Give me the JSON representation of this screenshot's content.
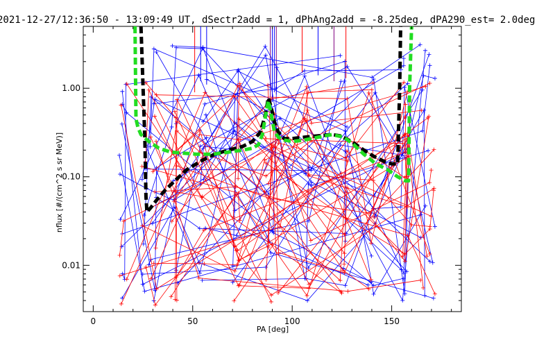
{
  "chart_data": {
    "type": "line",
    "title": "2021-12-27/12:36:50 - 13:09:49 UT, dSectr2add = 1, dPhAng2add = -8.25deg, dPA290_est=   2.0deg",
    "xlabel": "PA [deg]",
    "ylabel": "nflux [#/(cm^2 s sr MeV)]",
    "xlim": [
      -5,
      185
    ],
    "ylim": [
      0.003,
      5.0
    ],
    "yscale": "log",
    "x_ticks": [
      0,
      50,
      100,
      150
    ],
    "x_tick_labels": [
      "0",
      "50",
      "100",
      "150"
    ],
    "y_ticks": [
      0.01,
      0.1,
      1.0
    ],
    "y_tick_labels": [
      "0.01",
      "0.10",
      "1.00"
    ],
    "grid": false,
    "colors": {
      "blue": "#0000ff",
      "red": "#ff0000",
      "black": "#000000",
      "green": "#22dd22",
      "purple": "#800080"
    },
    "series": [
      {
        "color": "#000000",
        "style": "dashed-thick",
        "x": [
          24,
          26,
          26.5,
          27,
          29,
          32,
          36,
          41,
          47,
          54,
          61,
          68,
          75,
          80,
          84,
          86.5,
          88,
          89.5,
          91,
          93,
          96,
          100,
          106,
          113,
          120,
          124,
          127,
          131,
          136,
          141,
          146,
          150,
          153,
          154,
          154.5
        ],
        "y": [
          5.0,
          0.25,
          0.06,
          0.04,
          0.045,
          0.055,
          0.07,
          0.09,
          0.12,
          0.15,
          0.18,
          0.2,
          0.22,
          0.25,
          0.32,
          0.5,
          0.78,
          0.6,
          0.42,
          0.32,
          0.27,
          0.27,
          0.28,
          0.29,
          0.3,
          0.29,
          0.27,
          0.24,
          0.2,
          0.17,
          0.15,
          0.14,
          0.14,
          1.0,
          5.0
        ]
      },
      {
        "color": "#22dd22",
        "style": "dashed-thick",
        "x": [
          21,
          21.5,
          22.5,
          24,
          28,
          33,
          39,
          45,
          52,
          60,
          68,
          75,
          80,
          83,
          85,
          87,
          88,
          89.5,
          91,
          93,
          96,
          100,
          106,
          113,
          120,
          126,
          131,
          136,
          142,
          148,
          153,
          157,
          158.5,
          159,
          160
        ],
        "y": [
          5.0,
          0.45,
          0.36,
          0.3,
          0.25,
          0.21,
          0.19,
          0.185,
          0.18,
          0.18,
          0.19,
          0.2,
          0.21,
          0.23,
          0.3,
          0.55,
          0.72,
          0.5,
          0.33,
          0.28,
          0.26,
          0.25,
          0.26,
          0.28,
          0.3,
          0.28,
          0.23,
          0.18,
          0.14,
          0.12,
          0.1,
          0.09,
          0.09,
          1.0,
          5.0
        ]
      }
    ]
  }
}
